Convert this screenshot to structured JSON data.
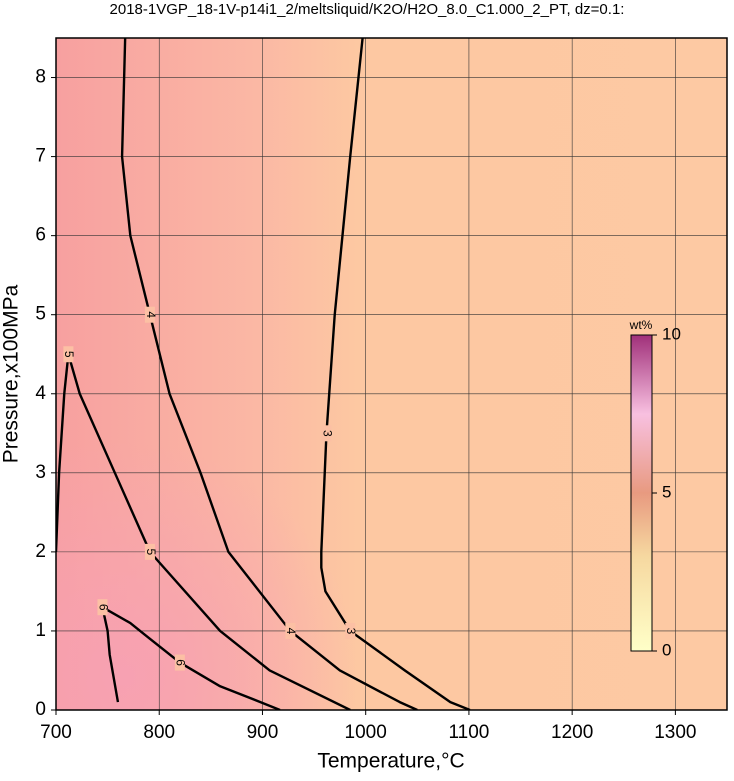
{
  "chart_data": {
    "type": "contour",
    "title": "2018-1VGP_18-1V-p14i1_2/meltsliquid/K2O/H2O_8.0_C1.000_2_PT, dz=0.1:",
    "x_label": "Temperature,°C",
    "y_label": "Pressure,x100MPa",
    "xlim": [
      700,
      1350
    ],
    "ylim": [
      0,
      8.5
    ],
    "xticks": [
      700,
      800,
      900,
      1000,
      1100,
      1200,
      1300
    ],
    "yticks": [
      0,
      1,
      2,
      3,
      4,
      5,
      6,
      7,
      8
    ],
    "grid": true,
    "contours": [
      {
        "level": 3,
        "x": [
          997,
          985,
          970,
          962,
          957,
          957,
          961,
          985,
          1038,
          1082,
          1101
        ],
        "y": [
          8.5,
          7,
          5,
          3.5,
          2,
          1.8,
          1.5,
          1,
          0.5,
          0.1,
          0
        ]
      },
      {
        "level": 4,
        "x": [
          767,
          764,
          772,
          791,
          810,
          840,
          867,
          927,
          975,
          1033,
          1050
        ],
        "y": [
          8.5,
          7,
          6,
          5,
          4,
          3,
          2,
          1,
          0.5,
          0.1,
          0
        ]
      },
      {
        "level": 5,
        "x": [
          700,
          703,
          708,
          712,
          723,
          757,
          791,
          859,
          907,
          985
        ],
        "y": [
          2,
          3,
          4,
          4.5,
          4,
          3,
          2,
          1,
          0.5,
          0
        ]
      },
      {
        "level": 6,
        "x": [
          760,
          752,
          750,
          745,
          772,
          791,
          820,
          859,
          898,
          917
        ],
        "y": [
          0.1,
          0.7,
          1,
          1.3,
          1.1,
          0.9,
          0.6,
          0.3,
          0.1,
          0
        ]
      }
    ],
    "colorbar": {
      "label": "wt%",
      "lim": [
        0,
        10
      ],
      "ticks": [
        0,
        5,
        10
      ]
    }
  }
}
